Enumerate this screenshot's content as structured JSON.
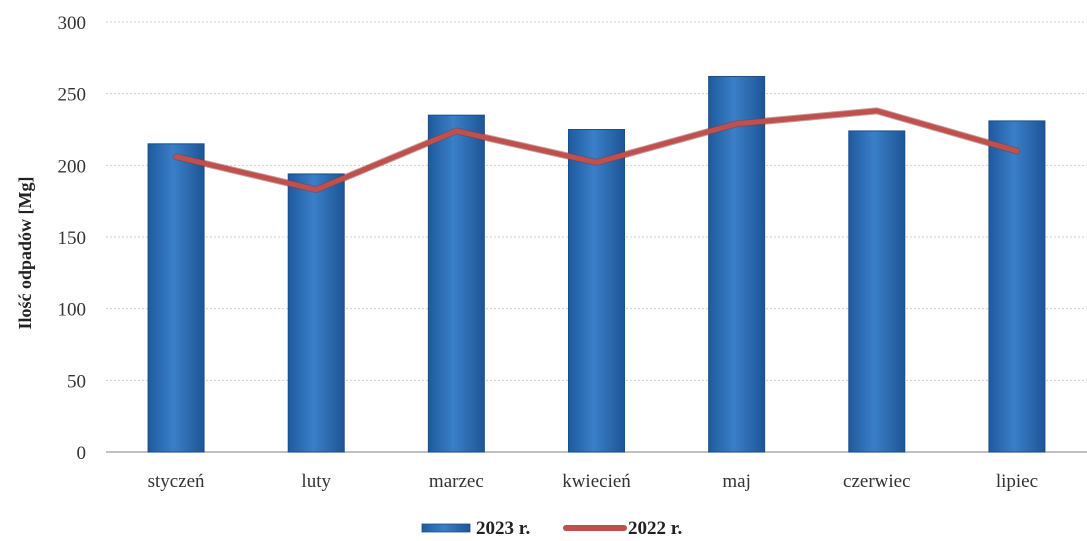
{
  "chart_data": {
    "type": "bar",
    "title": "",
    "xlabel": "",
    "ylabel": "Ilość odpadów [Mg]",
    "ylim": [
      0,
      300
    ],
    "yticks": [
      0,
      50,
      100,
      150,
      200,
      250,
      300
    ],
    "grid": true,
    "legend_position": "bottom-center",
    "categories": [
      "styczeń",
      "luty",
      "marzec",
      "kwiecień",
      "maj",
      "czerwiec",
      "lipiec"
    ],
    "series": [
      {
        "name": "2023 r.",
        "type": "bar",
        "color": "#2E6DB5",
        "values": [
          215,
          194,
          235,
          225,
          262,
          224,
          231
        ]
      },
      {
        "name": "2022 r.",
        "type": "line",
        "color": "#C0504D",
        "values": [
          206,
          183,
          224,
          202,
          229,
          238,
          210
        ]
      }
    ]
  }
}
